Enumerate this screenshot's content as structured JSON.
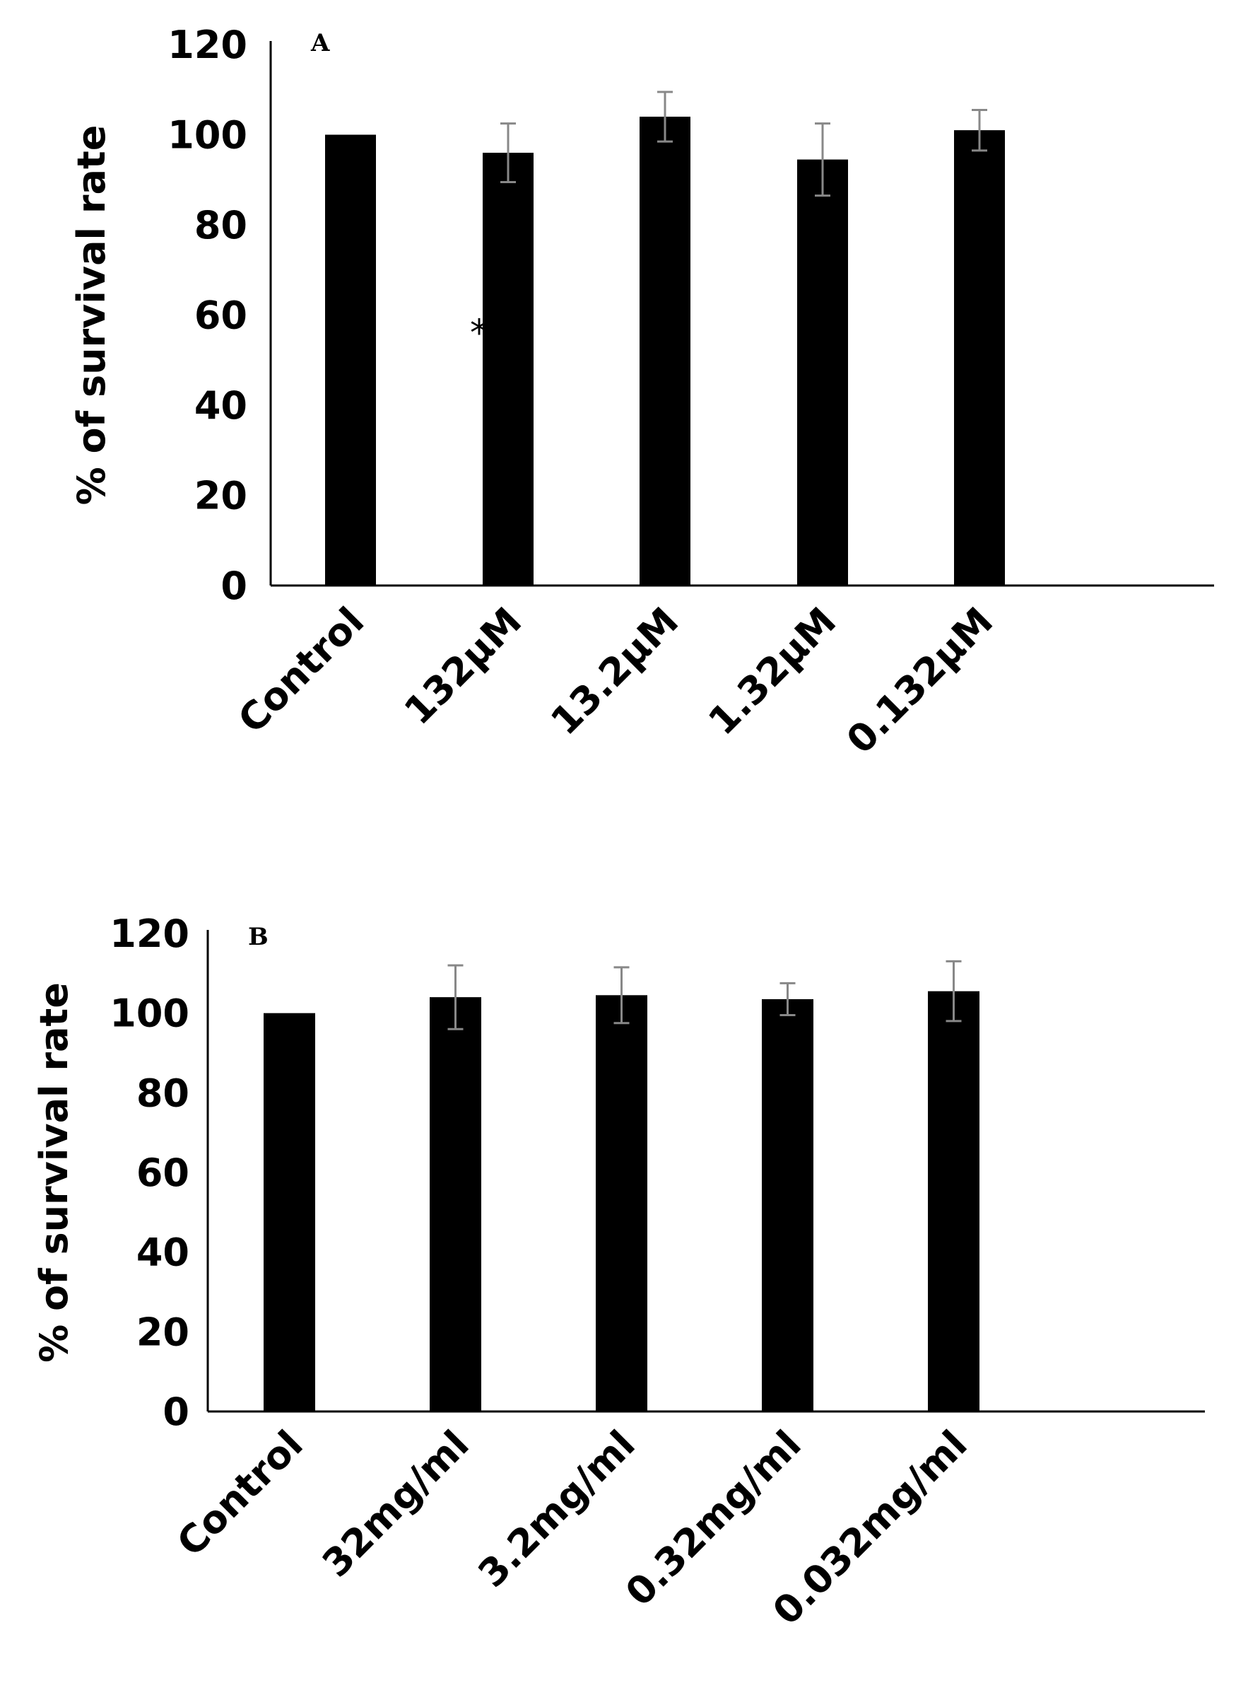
{
  "chart_data": [
    {
      "type": "bar",
      "panel_label": "A",
      "ylabel": "% of survival rate",
      "xlabel": "",
      "ylim": [
        0,
        120
      ],
      "yticks": [
        "0",
        "20",
        "40",
        "60",
        "80",
        "100",
        "120"
      ],
      "categories": [
        "Control",
        "132µM",
        "13.2µM",
        "1.32µM",
        "0.132µM"
      ],
      "values": [
        100,
        96,
        104,
        94.5,
        101
      ],
      "errors": [
        0,
        6.5,
        5.5,
        8,
        4.5
      ],
      "annotations": [
        {
          "text": "*",
          "category": "132µM",
          "y": 58
        }
      ],
      "bar_color": "#000000",
      "error_color": "#888888",
      "grid": false
    },
    {
      "type": "bar",
      "panel_label": "B",
      "ylabel": "% of survival  rate",
      "xlabel": "",
      "ylim": [
        0,
        120
      ],
      "yticks": [
        "0",
        "20",
        "40",
        "60",
        "80",
        "100",
        "120"
      ],
      "categories": [
        "Control",
        "32mg/ml",
        "3.2mg/ml",
        "0.32mg/ml",
        "0.032mg/ml"
      ],
      "values": [
        100,
        104,
        104.5,
        103.5,
        105.5
      ],
      "errors": [
        0,
        8,
        7,
        4,
        7.5
      ],
      "annotations": [],
      "bar_color": "#000000",
      "error_color": "#888888",
      "grid": false
    }
  ]
}
